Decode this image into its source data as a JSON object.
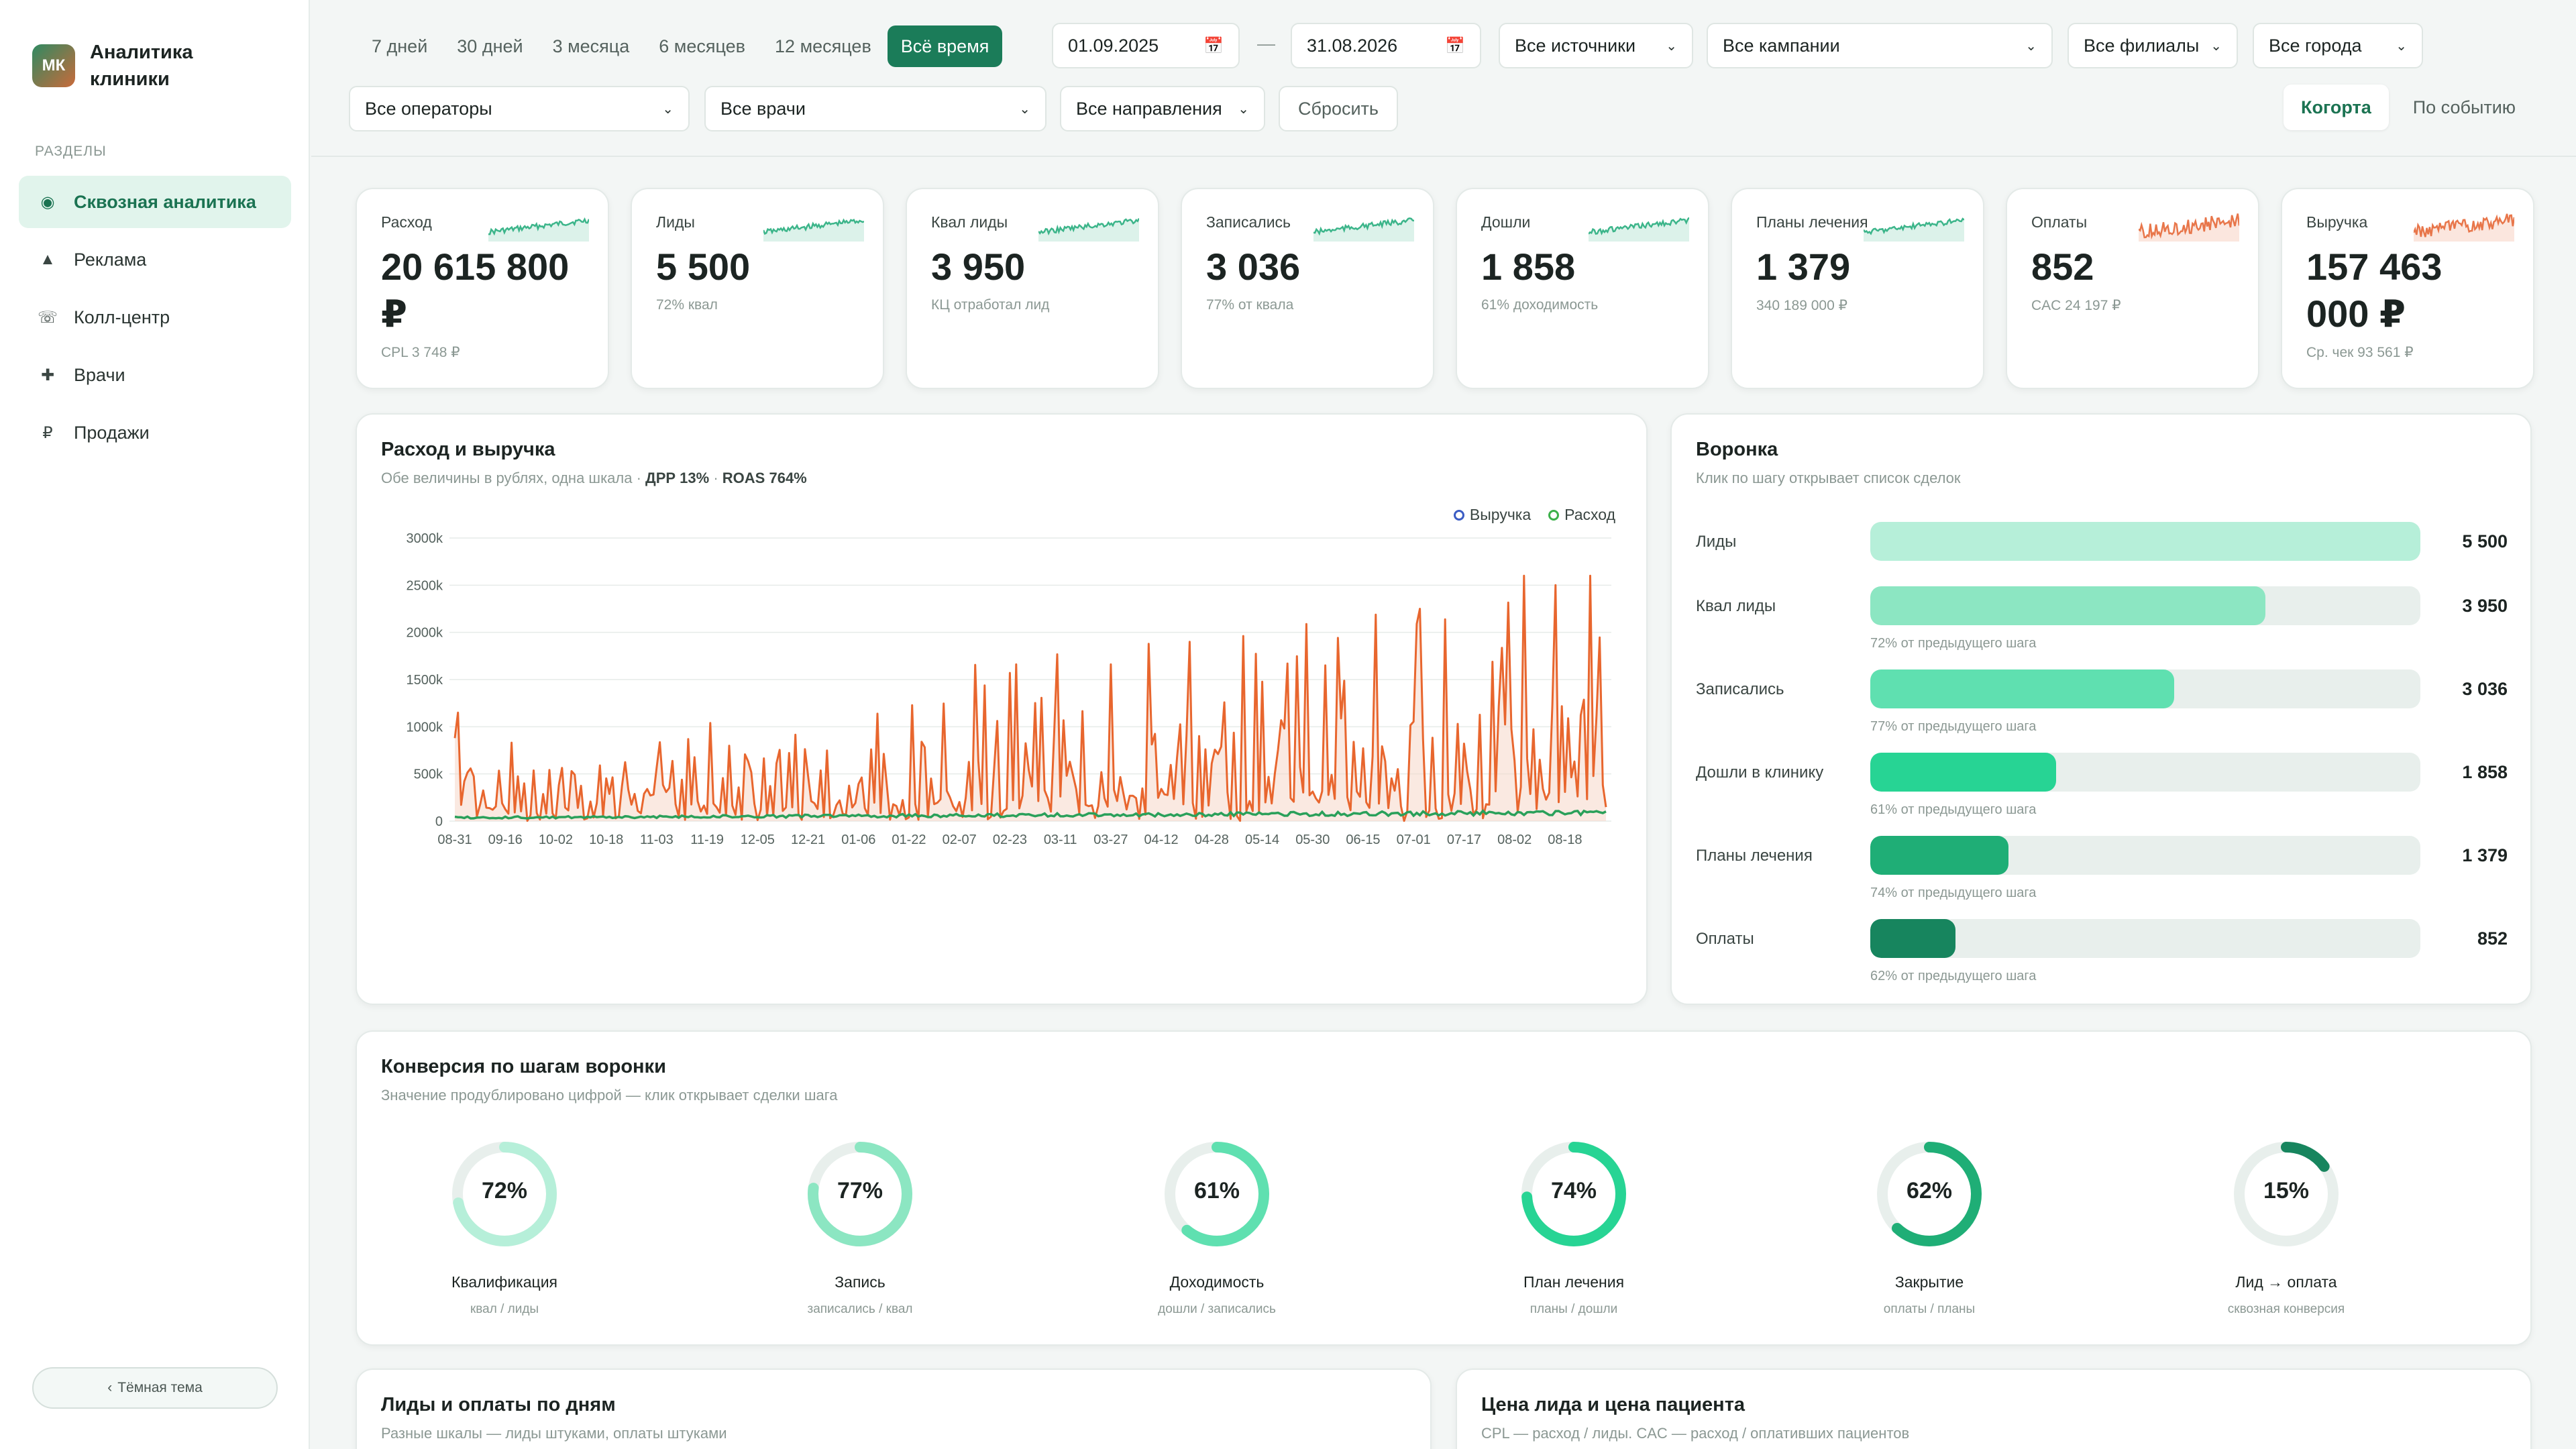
{
  "brand": {
    "logo": "МК",
    "name": "Аналитика клиники"
  },
  "sidebar": {
    "section_label": "РАЗДЕЛЫ",
    "items": [
      {
        "label": "Сквозная аналитика",
        "icon": "target-icon",
        "active": true
      },
      {
        "label": "Реклама",
        "icon": "triangle-icon",
        "active": false
      },
      {
        "label": "Колл-центр",
        "icon": "phone-icon",
        "active": false
      },
      {
        "label": "Врачи",
        "icon": "plus-icon",
        "active": false
      },
      {
        "label": "Продажи",
        "icon": "ruble-icon",
        "active": false
      }
    ],
    "theme_button": "Тёмная тема"
  },
  "filters": {
    "periods": [
      "7 дней",
      "30 дней",
      "3 месяца",
      "6 месяцев",
      "12 месяцев",
      "Всё время"
    ],
    "active_period": "Всё время",
    "date_from": "01.09.2025",
    "date_sep": "—",
    "date_to": "31.08.2026",
    "sources": "Все источники",
    "campaigns": "Все кампании",
    "branches": "Все филиалы",
    "cities": "Все города",
    "operators": "Все операторы",
    "doctors": "Все врачи",
    "directions": "Все направления",
    "reset": "Сбросить",
    "mode_cohort": "Когорта",
    "mode_event": "По событию"
  },
  "kpis": [
    {
      "label": "Расход",
      "value": "20 615 800 ₽",
      "sub": "CPL 3 748 ₽",
      "spark_color": "#3cb58a"
    },
    {
      "label": "Лиды",
      "value": "5 500",
      "sub": "72% квал",
      "spark_color": "#3cb58a"
    },
    {
      "label": "Квал лиды",
      "value": "3 950",
      "sub": "КЦ отработал лид",
      "spark_color": "#3cb58a"
    },
    {
      "label": "Записались",
      "value": "3 036",
      "sub": "77% от квала",
      "spark_color": "#3cb58a"
    },
    {
      "label": "Дошли",
      "value": "1 858",
      "sub": "61% доходимость",
      "spark_color": "#3cb58a"
    },
    {
      "label": "Планы лечения",
      "value": "1 379",
      "sub": "340 189 000 ₽",
      "spark_color": "#3cb58a"
    },
    {
      "label": "Оплаты",
      "value": "852",
      "sub": "CAC 24 197 ₽",
      "spark_color": "#e8764a"
    },
    {
      "label": "Выручка",
      "value": "157 463 000 ₽",
      "sub": "Ср. чек 93 561 ₽",
      "spark_color": "#e8764a"
    }
  ],
  "spend_revenue": {
    "title": "Расход и выручка",
    "subtitle": "Обе величины в рублях, одна шкала ·",
    "drr": "ДРР 13%",
    "roas": "ROAS 764%",
    "sep": "·"
  },
  "chart_data": {
    "type": "line",
    "x_tick_labels": [
      "08-31",
      "09-16",
      "10-02",
      "10-18",
      "11-03",
      "11-19",
      "12-05",
      "12-21",
      "01-06",
      "01-22",
      "02-07",
      "02-23",
      "03-11",
      "03-27",
      "04-12",
      "04-28",
      "05-14",
      "05-30",
      "06-15",
      "07-01",
      "07-17",
      "08-02",
      "08-18"
    ],
    "y_tick_labels": [
      "0",
      "500k",
      "1000k",
      "1500k",
      "2000k",
      "2500k",
      "3000k"
    ],
    "ylim": [
      0,
      3000000
    ],
    "legend_placement": "top-right",
    "series": [
      {
        "name": "Выручка",
        "color": "#e8662e",
        "marker_color": "#3b5cc4"
      },
      {
        "name": "Расход",
        "color": "#2aa05a",
        "marker_color": "#3cb04a"
      }
    ],
    "x": "daily 2025-08-31 … 2026-08-31",
    "revenue_peaks": [
      {
        "date": "2025-09-01",
        "value": 1150000
      },
      {
        "date": "2026-04-21",
        "value": 1900000
      },
      {
        "date": "2026-06-03",
        "value": 1650000
      },
      {
        "date": "2026-07-03",
        "value": 2250000
      },
      {
        "date": "2026-08-05",
        "value": 2600000
      },
      {
        "date": "2026-08-15",
        "value": 2500000
      },
      {
        "date": "2026-08-26",
        "value": 2600000
      }
    ],
    "revenue_typical": 350000,
    "spend_typical": 60000
  },
  "funnel": {
    "title": "Воронка",
    "subtitle": "Клик по шагу открывает список сделок",
    "steps": [
      {
        "label": "Лиды",
        "value": "5 500",
        "ratio": 1.0,
        "pct": "",
        "color": "#b6efd9"
      },
      {
        "label": "Квал лиды",
        "value": "3 950",
        "ratio": 0.718,
        "pct": "72% от предыдущего шага",
        "color": "#8ce6c2"
      },
      {
        "label": "Записались",
        "value": "3 036",
        "ratio": 0.552,
        "pct": "77% от предыдущего шага",
        "color": "#5fe0b0"
      },
      {
        "label": "Дошли в клинику",
        "value": "1 858",
        "ratio": 0.338,
        "pct": "61% от предыдущего шага",
        "color": "#27d494"
      },
      {
        "label": "Планы лечения",
        "value": "1 379",
        "ratio": 0.251,
        "pct": "74% от предыдущего шага",
        "color": "#1fae76"
      },
      {
        "label": "Оплаты",
        "value": "852",
        "ratio": 0.155,
        "pct": "62% от предыдущего шага",
        "color": "#17855e"
      }
    ]
  },
  "conversion": {
    "title": "Конверсия по шагам воронки",
    "subtitle": "Значение продублировано цифрой — клик открывает сделки шага",
    "items": [
      {
        "pct": "72%",
        "value": 0.72,
        "name": "Квалификация",
        "sub": "квал / лиды",
        "color": "#b6efd9"
      },
      {
        "pct": "77%",
        "value": 0.77,
        "name": "Запись",
        "sub": "записались / квал",
        "color": "#8ce6c2"
      },
      {
        "pct": "61%",
        "value": 0.61,
        "name": "Доходимость",
        "sub": "дошли / записались",
        "color": "#5fe0b0"
      },
      {
        "pct": "74%",
        "value": 0.74,
        "name": "План лечения",
        "sub": "планы / дошли",
        "color": "#27d494"
      },
      {
        "pct": "62%",
        "value": 0.62,
        "name": "Закрытие",
        "sub": "оплаты / планы",
        "color": "#1fae76"
      },
      {
        "pct": "15%",
        "value": 0.15,
        "name": "Лид → оплата",
        "sub": "сквозная конверсия",
        "color": "#17855e"
      }
    ]
  },
  "bottom": {
    "leads_title": "Лиды и оплаты по дням",
    "leads_sub": "Разные шкалы — лиды штуками, оплаты штуками",
    "price_title": "Цена лида и цена пациента",
    "price_sub": "CPL — расход / лиды. CAC — расход / оплативших пациентов"
  }
}
